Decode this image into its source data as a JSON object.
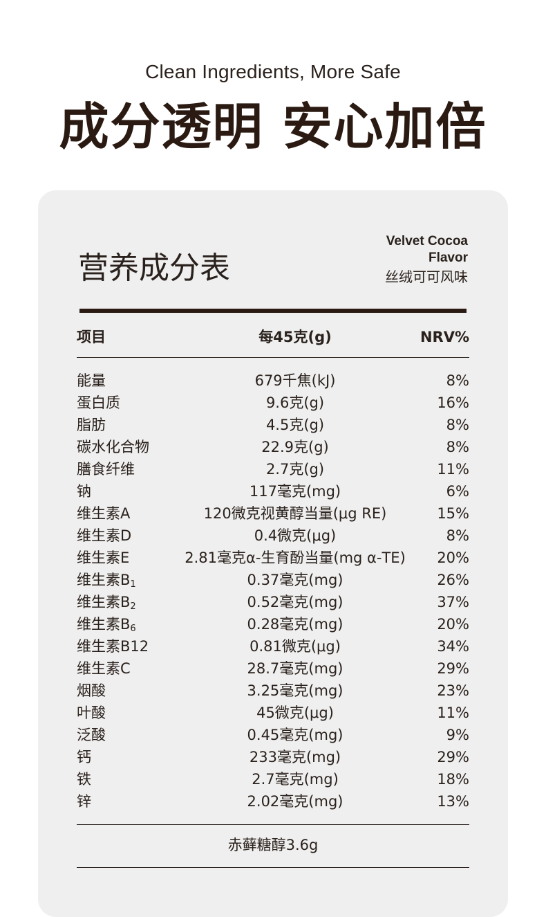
{
  "hero": {
    "subtitle": "Clean Ingredients, More Safe",
    "title": "成分透明 安心加倍"
  },
  "card": {
    "title": "营养成分表",
    "flavor_en_line1": "Velvet Cocoa",
    "flavor_en_line2": "Flavor",
    "flavor_cn": "丝绒可可风味",
    "headers": {
      "item": "项目",
      "per": "每45克(g)",
      "nrv": "NRV%"
    },
    "rows": [
      {
        "name": "能量",
        "amount": "679千焦(kJ)",
        "nrv": "8%"
      },
      {
        "name": "蛋白质",
        "amount": "9.6克(g)",
        "nrv": "16%"
      },
      {
        "name": "脂肪",
        "amount": "4.5克(g)",
        "nrv": "8%"
      },
      {
        "name": "碳水化合物",
        "amount": "22.9克(g)",
        "nrv": "8%"
      },
      {
        "name": "膳食纤维",
        "amount": "2.7克(g)",
        "nrv": "11%"
      },
      {
        "name": "钠",
        "amount": "117毫克(mg)",
        "nrv": "6%"
      },
      {
        "name": "维生素A",
        "amount": "120微克视黄醇当量(μg RE)",
        "nrv": "15%"
      },
      {
        "name": "维生素D",
        "amount": "0.4微克(μg)",
        "nrv": "8%"
      },
      {
        "name": "维生素E",
        "amount": "2.81毫克α-生育酚当量(mg α-TE)",
        "nrv": "20%"
      },
      {
        "name": "维生素B",
        "sub": "1",
        "amount": "0.37毫克(mg)",
        "nrv": "26%"
      },
      {
        "name": "维生素B",
        "sub": "2",
        "amount": "0.52毫克(mg)",
        "nrv": "37%"
      },
      {
        "name": "维生素B",
        "sub": "6",
        "amount": "0.28毫克(mg)",
        "nrv": "20%"
      },
      {
        "name": "维生素B12",
        "amount": "0.81微克(μg)",
        "nrv": "34%"
      },
      {
        "name": "维生素C",
        "amount": "28.7毫克(mg)",
        "nrv": "29%"
      },
      {
        "name": "烟酸",
        "amount": "3.25毫克(mg)",
        "nrv": "23%"
      },
      {
        "name": "叶酸",
        "amount": "45微克(μg)",
        "nrv": "11%"
      },
      {
        "name": "泛酸",
        "amount": "0.45毫克(mg)",
        "nrv": "9%"
      },
      {
        "name": "钙",
        "amount": "233毫克(mg)",
        "nrv": "29%"
      },
      {
        "name": "铁",
        "amount": "2.7毫克(mg)",
        "nrv": "18%"
      },
      {
        "name": "锌",
        "amount": "2.02毫克(mg)",
        "nrv": "13%"
      }
    ],
    "footer_note": "赤藓糖醇3.6g"
  }
}
